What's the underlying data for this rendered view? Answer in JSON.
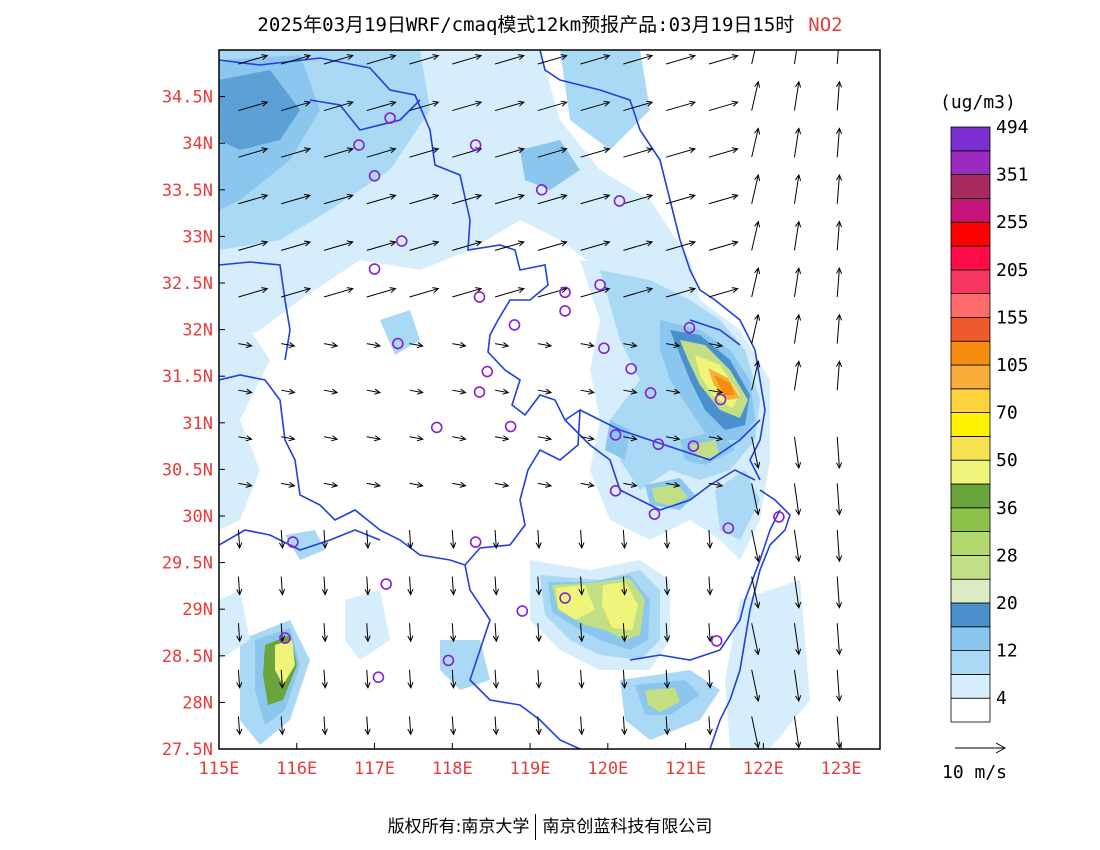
{
  "title": {
    "main": "2025年03月19日WRF/cmaq模式12km预报产品:03月19日15时",
    "species": "NO2"
  },
  "map": {
    "lon_range": [
      115,
      123.5
    ],
    "lat_range": [
      27.5,
      35
    ],
    "lon_ticks": [
      "115E",
      "116E",
      "117E",
      "118E",
      "119E",
      "120E",
      "121E",
      "122E",
      "123E"
    ],
    "lat_ticks": [
      "27.5N",
      "28N",
      "28.5N",
      "29N",
      "29.5N",
      "30N",
      "30.5N",
      "31N",
      "31.5N",
      "32N",
      "32.5N",
      "33N",
      "33.5N",
      "34N",
      "34.5N"
    ],
    "border_color": "#2040e0",
    "station_color": "#8a1fd0",
    "stations": [
      [
        117.2,
        34.27
      ],
      [
        116.8,
        33.98
      ],
      [
        118.3,
        33.98
      ],
      [
        117.0,
        33.65
      ],
      [
        119.15,
        33.5
      ],
      [
        120.15,
        33.38
      ],
      [
        117.35,
        32.95
      ],
      [
        117.0,
        32.65
      ],
      [
        119.9,
        32.48
      ],
      [
        119.45,
        32.4
      ],
      [
        118.35,
        32.35
      ],
      [
        119.45,
        32.2
      ],
      [
        118.8,
        32.05
      ],
      [
        121.05,
        32.02
      ],
      [
        117.3,
        31.85
      ],
      [
        119.95,
        31.8
      ],
      [
        120.3,
        31.58
      ],
      [
        118.45,
        31.55
      ],
      [
        118.35,
        31.33
      ],
      [
        120.55,
        31.32
      ],
      [
        121.45,
        31.25
      ],
      [
        117.8,
        30.95
      ],
      [
        118.75,
        30.96
      ],
      [
        120.1,
        30.87
      ],
      [
        120.65,
        30.77
      ],
      [
        121.1,
        30.75
      ],
      [
        120.1,
        30.27
      ],
      [
        120.6,
        30.02
      ],
      [
        121.55,
        29.87
      ],
      [
        122.2,
        29.99
      ],
      [
        115.95,
        29.72
      ],
      [
        118.3,
        29.72
      ],
      [
        117.15,
        29.27
      ],
      [
        119.45,
        29.12
      ],
      [
        118.9,
        28.98
      ],
      [
        115.85,
        28.69
      ],
      [
        121.4,
        28.66
      ],
      [
        117.95,
        28.45
      ],
      [
        117.05,
        28.27
      ]
    ]
  },
  "colorbar": {
    "unit": "(ug/m3)",
    "colors": [
      "#ffffff",
      "#d6edfb",
      "#aad9f5",
      "#8ac6ee",
      "#4a90cc",
      "#dcebc4",
      "#c2df86",
      "#b3d86e",
      "#8dc24b",
      "#6aa53c",
      "#eef57a",
      "#f5e24f",
      "#fff200",
      "#fcd33c",
      "#f9ad3a",
      "#f68c0f",
      "#ee5a2c",
      "#ff6b6b",
      "#f5365f",
      "#ff0b48",
      "#ff0000",
      "#c6157a",
      "#a82a5e",
      "#9a2ac0",
      "#7b2fd1"
    ],
    "labels": [
      "4",
      "12",
      "20",
      "28",
      "36",
      "50",
      "70",
      "105",
      "155",
      "205",
      "255",
      "351",
      "494"
    ]
  },
  "wind_scale": {
    "label": "10 m/s"
  },
  "copyright": {
    "left": "版权所有:南京大学",
    "right": "南京创蓝科技有限公司"
  }
}
